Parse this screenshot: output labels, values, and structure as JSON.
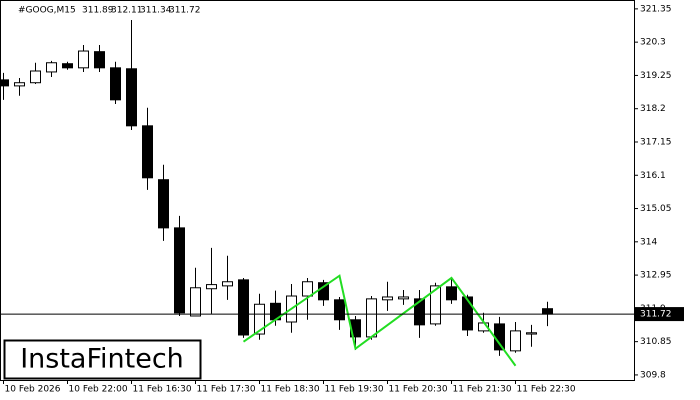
{
  "chart_data": {
    "type": "candlestick",
    "symbol": "#GOOG,M15",
    "watermark": "InstaFintech",
    "categories": [
      "10 Feb 2026",
      null,
      null,
      null,
      "10 Feb 22:00",
      null,
      null,
      null,
      "11 Feb 16:30",
      null,
      null,
      null,
      "11 Feb 17:30",
      null,
      null,
      null,
      "11 Feb 18:30",
      null,
      null,
      null,
      "11 Feb 19:30",
      null,
      null,
      null,
      "11 Feb 20:30",
      null,
      null,
      null,
      "11 Feb 21:30",
      null,
      null,
      null,
      "11 Feb 22:30",
      null,
      null
    ],
    "open": [
      319.11,
      318.92,
      319.02,
      319.36,
      319.62,
      319.49,
      320.0,
      319.49,
      319.46,
      317.66,
      315.96,
      314.44,
      311.66,
      312.52,
      312.61,
      312.8,
      311.09,
      312.06,
      311.47,
      312.29,
      312.71,
      312.17,
      311.54,
      311.0,
      312.17,
      312.2,
      312.2,
      311.41,
      312.58,
      312.26,
      311.19,
      311.41,
      310.56,
      311.09,
      311.89
    ],
    "high": [
      319.33,
      319.17,
      319.65,
      319.71,
      319.68,
      320.21,
      320.21,
      319.68,
      321.0,
      318.23,
      316.43,
      314.82,
      313.18,
      313.81,
      313.56,
      312.86,
      312.36,
      312.46,
      312.67,
      312.86,
      312.8,
      312.26,
      311.66,
      312.29,
      312.74,
      312.48,
      312.48,
      312.71,
      312.86,
      312.33,
      311.76,
      311.63,
      311.47,
      311.38,
      312.11
    ],
    "low": [
      318.48,
      318.61,
      318.98,
      319.2,
      319.43,
      319.36,
      319.36,
      318.35,
      317.53,
      315.64,
      314.03,
      311.66,
      311.66,
      311.73,
      312.17,
      310.97,
      310.91,
      311.35,
      311.13,
      311.54,
      311.98,
      311.22,
      310.59,
      310.91,
      311.82,
      312.01,
      310.97,
      311.35,
      312.04,
      311.03,
      311.13,
      310.4,
      310.5,
      310.69,
      311.34
    ],
    "close": [
      318.92,
      319.02,
      319.39,
      319.65,
      319.49,
      320.02,
      319.49,
      318.48,
      317.66,
      316.02,
      314.44,
      311.76,
      312.55,
      312.65,
      312.74,
      311.06,
      312.03,
      311.54,
      312.29,
      312.74,
      312.17,
      311.54,
      311.0,
      312.2,
      312.26,
      312.26,
      311.38,
      312.61,
      312.17,
      311.22,
      311.44,
      310.59,
      311.19,
      311.13,
      311.72
    ],
    "pattern": {
      "color": "#22dd22",
      "x": [
        15,
        21,
        22,
        28,
        32
      ],
      "values": [
        310.85,
        312.93,
        310.63,
        312.86,
        310.09
      ]
    },
    "ylim": [
      309.64,
      321.63
    ],
    "yticks": [
      309.8,
      310.85,
      311.9,
      312.95,
      314.0,
      315.05,
      316.1,
      317.15,
      318.2,
      319.25,
      320.3,
      321.35
    ]
  }
}
